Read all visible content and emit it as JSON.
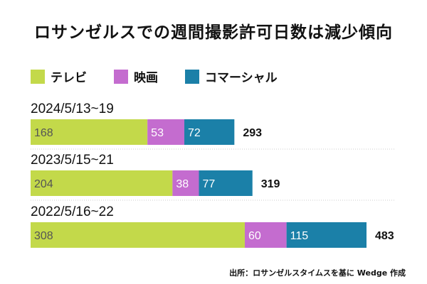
{
  "chart_data": {
    "type": "bar",
    "orientation": "horizontal",
    "stacked": true,
    "title": "ロサンゼルスでの週間撮影許可日数は減少傾向",
    "categories": [
      "2024/5/13~19",
      "2023/5/15~21",
      "2022/5/16~22"
    ],
    "series": [
      {
        "name": "テレビ",
        "color": "#c3d94a",
        "values": [
          168,
          204,
          308
        ]
      },
      {
        "name": "映画",
        "color": "#c46ccf",
        "values": [
          53,
          38,
          60
        ]
      },
      {
        "name": "コマーシャル",
        "color": "#1b80a8",
        "values": [
          72,
          77,
          115
        ]
      }
    ],
    "totals": [
      293,
      319,
      483
    ],
    "legend_position": "top-left",
    "source": "出所：ロサンゼルスタイムスを基に Wedge 作成"
  }
}
